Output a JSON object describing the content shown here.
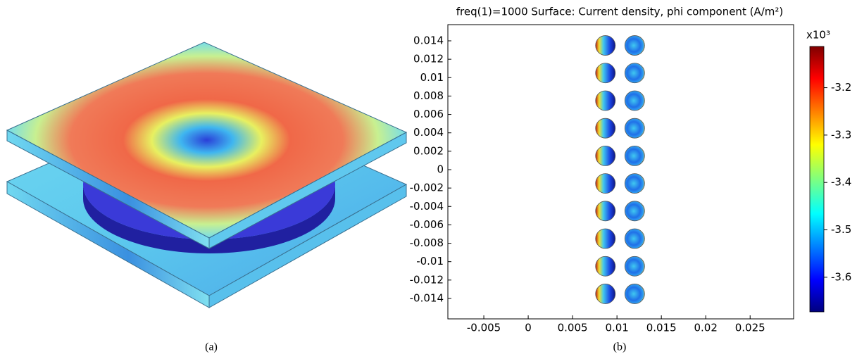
{
  "chart_data": {
    "type": "scatter",
    "title": "freq(1)=1000 Surface: Current density, phi component (A/m²)",
    "series": [
      {
        "x": [
          0.0087,
          0.0087,
          0.0087,
          0.0087,
          0.0087,
          0.0087,
          0.0087,
          0.0087,
          0.0087,
          0.0087
        ],
        "values": [
          0.0135,
          0.0105,
          0.0075,
          0.0045,
          0.0015,
          -0.0015,
          -0.0045,
          -0.0075,
          -0.0105,
          -0.0135
        ]
      },
      {
        "x": [
          0.012,
          0.012,
          0.012,
          0.012,
          0.012,
          0.012,
          0.012,
          0.012,
          0.012,
          0.012
        ],
        "values": [
          0.0135,
          0.0105,
          0.0075,
          0.0045,
          0.0015,
          -0.0015,
          -0.0045,
          -0.0075,
          -0.0105,
          -0.0135
        ]
      }
    ],
    "xlim": [
      -0.00905,
      0.0299
    ],
    "xticks": [
      -0.005,
      0,
      0.005,
      0.01,
      0.015,
      0.02,
      0.025
    ],
    "ylim": [
      -0.01622,
      0.01576
    ],
    "yticks": [
      0.014,
      0.012,
      0.01,
      0.008,
      0.006,
      0.004,
      0.002,
      0,
      -0.002,
      -0.004,
      -0.006,
      -0.008,
      -0.01,
      -0.012,
      -0.014
    ],
    "colorbar": {
      "label": "x10³",
      "clim": [
        -3.673,
        -3.113
      ],
      "ticks": [
        -3.2,
        -3.3,
        -3.4,
        -3.5,
        -3.6
      ]
    }
  },
  "captions": [
    "(a)",
    "(b)"
  ]
}
